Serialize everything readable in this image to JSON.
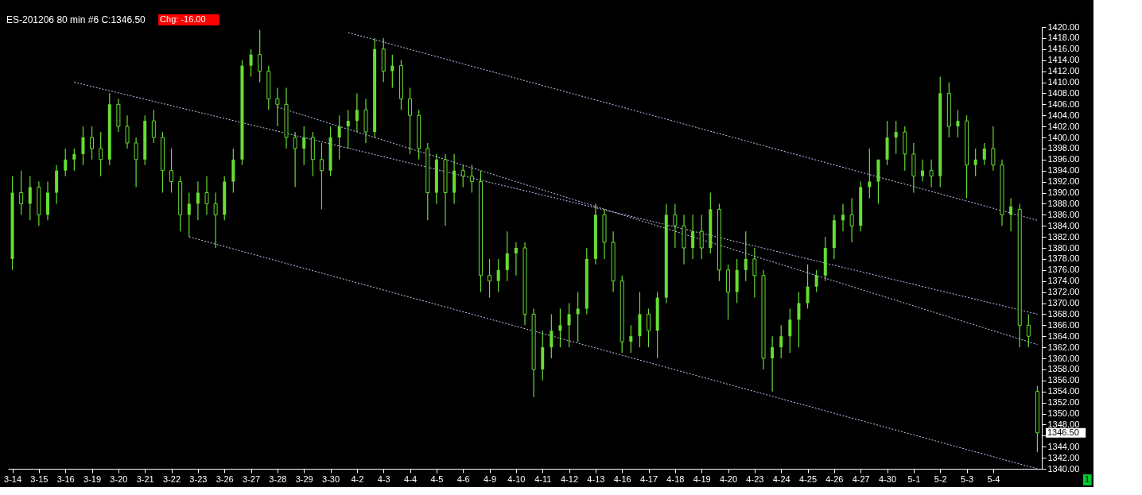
{
  "chart_data": {
    "type": "candlestick",
    "title": "ES-201206  80 min  #6 C:1346.50",
    "annotations": [
      "Chg: -16.00",
      "1",
      "1346.50"
    ],
    "color": "#66dd33",
    "categories": [
      "3-14",
      null,
      null,
      "3-15",
      null,
      null,
      "3-16",
      null,
      null,
      "3-19",
      null,
      null,
      "3-20",
      null,
      null,
      "3-21",
      null,
      null,
      "3-22",
      null,
      null,
      "3-23",
      null,
      null,
      "3-26",
      null,
      null,
      "3-27",
      null,
      null,
      "3-28",
      null,
      null,
      "3-29",
      null,
      null,
      "3-30",
      null,
      null,
      "4-2",
      null,
      null,
      "4-3",
      null,
      null,
      "4-4",
      null,
      null,
      "4-5",
      null,
      null,
      "4-6",
      null,
      null,
      "4-9",
      null,
      null,
      "4-10",
      null,
      null,
      "4-11",
      null,
      null,
      "4-12",
      null,
      null,
      "4-13",
      null,
      null,
      "4-16",
      null,
      null,
      "4-17",
      null,
      null,
      "4-18",
      null,
      null,
      "4-19",
      null,
      null,
      "4-20",
      null,
      null,
      "4-23",
      null,
      null,
      "4-24",
      null,
      null,
      "4-25",
      null,
      null,
      "4-26",
      null,
      null,
      "4-27",
      null,
      null,
      "4-30",
      null,
      null,
      "5-1",
      null,
      null,
      "5-2",
      null,
      null,
      "5-3",
      null,
      null,
      "5-4",
      null,
      null,
      null,
      null,
      null
    ],
    "ohlc": [
      [
        1378,
        1393,
        1376,
        1390
      ],
      [
        1390,
        1394,
        1386,
        1388
      ],
      [
        1388,
        1393,
        1385,
        1391
      ],
      [
        1391,
        1392,
        1384,
        1386
      ],
      [
        1386,
        1392,
        1385,
        1390
      ],
      [
        1390,
        1395,
        1388,
        1394
      ],
      [
        1394,
        1398,
        1393,
        1396
      ],
      [
        1396,
        1398,
        1394,
        1397
      ],
      [
        1397,
        1402,
        1395,
        1400
      ],
      [
        1400,
        1402,
        1396,
        1398
      ],
      [
        1398,
        1401,
        1393,
        1396
      ],
      [
        1396,
        1408,
        1395,
        1406
      ],
      [
        1406,
        1407,
        1401,
        1402
      ],
      [
        1402,
        1404,
        1398,
        1399
      ],
      [
        1399,
        1400,
        1391,
        1396
      ],
      [
        1396,
        1404,
        1395,
        1403
      ],
      [
        1403,
        1405,
        1399,
        1400
      ],
      [
        1400,
        1401,
        1390,
        1394
      ],
      [
        1394,
        1398,
        1390,
        1392
      ],
      [
        1392,
        1393,
        1383,
        1386
      ],
      [
        1386,
        1390,
        1382,
        1388
      ],
      [
        1388,
        1392,
        1385,
        1390
      ],
      [
        1390,
        1393,
        1386,
        1388
      ],
      [
        1388,
        1390,
        1380,
        1386
      ],
      [
        1386,
        1393,
        1385,
        1392
      ],
      [
        1392,
        1398,
        1390,
        1396
      ],
      [
        1396,
        1414,
        1395,
        1413
      ],
      [
        1413,
        1416,
        1411,
        1415
      ],
      [
        1415,
        1419.5,
        1410,
        1412
      ],
      [
        1412,
        1413,
        1405,
        1407
      ],
      [
        1407,
        1409,
        1402,
        1406
      ],
      [
        1406,
        1409,
        1398,
        1400
      ],
      [
        1400,
        1401,
        1391,
        1398
      ],
      [
        1398,
        1402,
        1395,
        1400
      ],
      [
        1400,
        1401,
        1393,
        1396
      ],
      [
        1396,
        1399,
        1387,
        1394
      ],
      [
        1394,
        1402,
        1393,
        1400
      ],
      [
        1400,
        1404,
        1396,
        1402
      ],
      [
        1402,
        1405,
        1398,
        1403
      ],
      [
        1403,
        1408,
        1401,
        1405
      ],
      [
        1405,
        1407,
        1399,
        1401
      ],
      [
        1401,
        1418,
        1400,
        1416
      ],
      [
        1416,
        1418,
        1410,
        1412
      ],
      [
        1412,
        1415,
        1409,
        1413
      ],
      [
        1413,
        1414,
        1405,
        1407
      ],
      [
        1407,
        1409,
        1397,
        1404
      ],
      [
        1404,
        1405,
        1396,
        1398
      ],
      [
        1398,
        1399,
        1385,
        1390
      ],
      [
        1390,
        1397,
        1388,
        1396
      ],
      [
        1396,
        1397,
        1384,
        1390
      ],
      [
        1390,
        1397,
        1388,
        1394
      ],
      [
        1394,
        1395,
        1391,
        1393
      ],
      [
        1393,
        1395,
        1390,
        1392
      ],
      [
        1392,
        1394,
        1372,
        1375
      ],
      [
        1375,
        1378,
        1371,
        1374
      ],
      [
        1374,
        1378,
        1372,
        1376
      ],
      [
        1376,
        1383,
        1374,
        1379
      ],
      [
        1379,
        1381,
        1375,
        1380
      ],
      [
        1380,
        1381,
        1366,
        1368
      ],
      [
        1368,
        1369,
        1353,
        1358
      ],
      [
        1358,
        1365,
        1356,
        1362
      ],
      [
        1362,
        1368,
        1360,
        1365
      ],
      [
        1365,
        1369,
        1362,
        1366
      ],
      [
        1366,
        1370,
        1362,
        1368
      ],
      [
        1368,
        1372,
        1363,
        1369
      ],
      [
        1369,
        1380,
        1368,
        1378
      ],
      [
        1378,
        1388,
        1377,
        1386
      ],
      [
        1386,
        1387,
        1378,
        1381
      ],
      [
        1381,
        1383,
        1372,
        1374
      ],
      [
        1374,
        1375,
        1361,
        1363
      ],
      [
        1363,
        1366,
        1361,
        1364
      ],
      [
        1364,
        1372,
        1362,
        1368
      ],
      [
        1368,
        1369,
        1362,
        1365
      ],
      [
        1365,
        1372,
        1360,
        1371
      ],
      [
        1371,
        1388,
        1370,
        1386
      ],
      [
        1386,
        1388,
        1380,
        1384
      ],
      [
        1384,
        1386,
        1377,
        1380
      ],
      [
        1380,
        1386,
        1378,
        1383
      ],
      [
        1383,
        1386,
        1378,
        1380
      ],
      [
        1380,
        1390,
        1379,
        1387
      ],
      [
        1387,
        1388,
        1374,
        1376
      ],
      [
        1376,
        1377,
        1367,
        1372
      ],
      [
        1372,
        1378,
        1370,
        1376
      ],
      [
        1376,
        1383,
        1374,
        1378
      ],
      [
        1378,
        1380,
        1371,
        1375
      ],
      [
        1375,
        1376,
        1358,
        1360
      ],
      [
        1360,
        1364,
        1354,
        1362
      ],
      [
        1362,
        1366,
        1360,
        1364
      ],
      [
        1364,
        1369,
        1361,
        1367
      ],
      [
        1367,
        1372,
        1362,
        1370
      ],
      [
        1370,
        1377,
        1369,
        1373
      ],
      [
        1373,
        1376,
        1372,
        1375
      ],
      [
        1375,
        1382,
        1374,
        1380
      ],
      [
        1380,
        1386,
        1378,
        1385
      ],
      [
        1385,
        1388,
        1383,
        1386
      ],
      [
        1386,
        1389,
        1381,
        1384
      ],
      [
        1384,
        1392,
        1383,
        1391
      ],
      [
        1391,
        1398,
        1389,
        1392
      ],
      [
        1392,
        1396,
        1388,
        1396
      ],
      [
        1396,
        1403,
        1395,
        1400
      ],
      [
        1400,
        1403,
        1397,
        1401
      ],
      [
        1401,
        1402,
        1394,
        1397
      ],
      [
        1397,
        1399,
        1390,
        1393
      ],
      [
        1393,
        1396,
        1392,
        1394
      ],
      [
        1394,
        1396,
        1391,
        1393
      ],
      [
        1393,
        1411,
        1391,
        1408
      ],
      [
        1408,
        1410,
        1400,
        1402
      ],
      [
        1402,
        1405,
        1400,
        1403
      ],
      [
        1403,
        1404,
        1389,
        1395
      ],
      [
        1395,
        1398,
        1393,
        1396
      ],
      [
        1396,
        1399,
        1395,
        1398
      ],
      [
        1398,
        1402,
        1394,
        1395
      ],
      [
        1395,
        1396,
        1384,
        1386
      ],
      [
        1386,
        1389,
        1383,
        1387.5
      ],
      [
        1387,
        1388,
        1362,
        1366
      ],
      [
        1366,
        1368,
        1362,
        1364
      ],
      [
        1354,
        1355,
        1343,
        1346.5
      ]
    ],
    "series": [
      {
        "type": "line",
        "color": "#c8c8ff",
        "line_style": "dotted",
        "values": [
          null,
          null,
          null,
          null,
          null,
          null,
          null,
          null,
          null,
          null,
          null,
          null,
          null,
          null,
          null,
          null,
          null,
          null,
          null,
          null,
          null,
          null,
          null,
          null,
          null,
          null,
          null,
          null,
          null,
          null,
          null,
          null,
          null,
          null,
          null,
          null,
          null,
          null,
          1419,
          null,
          null,
          null,
          null,
          null,
          null,
          null,
          null,
          null,
          null,
          null,
          null,
          null,
          null,
          null,
          null,
          null,
          null,
          null,
          null,
          null,
          null,
          null,
          null,
          null,
          null,
          null,
          null,
          null,
          null,
          null,
          null,
          null,
          null,
          null,
          null,
          null,
          null,
          null,
          null,
          null,
          null,
          null,
          null,
          null,
          null,
          null,
          null,
          null,
          null,
          null,
          null,
          null,
          null,
          null,
          null,
          null,
          null,
          null,
          null,
          null,
          null,
          null,
          null,
          null,
          null,
          null,
          null,
          null,
          null,
          null,
          null,
          null,
          null,
          null,
          null,
          null,
          1385
        ]
      },
      {
        "type": "line",
        "color": "#c8c8ff",
        "line_style": "dotted",
        "values": [
          null,
          null,
          null,
          null,
          null,
          null,
          null,
          1410,
          null,
          null,
          null,
          null,
          null,
          null,
          null,
          null,
          null,
          null,
          null,
          null,
          null,
          null,
          null,
          null,
          null,
          null,
          null,
          null,
          null,
          null,
          null,
          null,
          null,
          null,
          null,
          null,
          null,
          null,
          null,
          null,
          null,
          null,
          null,
          null,
          null,
          null,
          null,
          null,
          null,
          null,
          null,
          null,
          null,
          null,
          null,
          null,
          null,
          null,
          null,
          null,
          null,
          null,
          null,
          null,
          null,
          null,
          null,
          null,
          null,
          null,
          null,
          null,
          null,
          null,
          null,
          null,
          null,
          null,
          null,
          null,
          null,
          null,
          null,
          null,
          null,
          null,
          null,
          null,
          null,
          null,
          null,
          null,
          null,
          null,
          null,
          null,
          null,
          null,
          null,
          null,
          null,
          null,
          null,
          null,
          null,
          null,
          null,
          null,
          null,
          null,
          null,
          null,
          null,
          null,
          null,
          null,
          1368
        ]
      },
      {
        "type": "line",
        "color": "#c8c8ff",
        "line_style": "dotted",
        "values": [
          null,
          null,
          null,
          null,
          null,
          null,
          null,
          null,
          null,
          null,
          null,
          null,
          null,
          null,
          null,
          null,
          null,
          null,
          null,
          null,
          null,
          null,
          null,
          null,
          null,
          null,
          null,
          null,
          null,
          null,
          1405.5,
          null,
          null,
          null,
          null,
          null,
          null,
          null,
          null,
          null,
          null,
          null,
          null,
          null,
          null,
          null,
          null,
          null,
          null,
          null,
          null,
          null,
          null,
          null,
          null,
          null,
          null,
          null,
          null,
          null,
          null,
          null,
          null,
          null,
          null,
          null,
          null,
          null,
          null,
          null,
          null,
          null,
          null,
          null,
          null,
          null,
          null,
          null,
          null,
          null,
          null,
          null,
          null,
          null,
          null,
          null,
          null,
          null,
          null,
          null,
          null,
          null,
          null,
          null,
          null,
          null,
          null,
          null,
          null,
          null,
          null,
          null,
          null,
          null,
          null,
          null,
          null,
          null,
          null,
          null,
          null,
          null,
          null,
          null,
          null,
          null,
          1362.5
        ]
      },
      {
        "type": "line",
        "color": "#c8c8ff",
        "line_style": "dotted",
        "values": [
          null,
          null,
          null,
          null,
          null,
          null,
          null,
          null,
          null,
          null,
          null,
          null,
          null,
          null,
          null,
          null,
          null,
          null,
          null,
          null,
          1382,
          null,
          null,
          null,
          null,
          null,
          null,
          null,
          null,
          null,
          null,
          null,
          null,
          null,
          null,
          null,
          null,
          null,
          null,
          null,
          null,
          null,
          null,
          null,
          null,
          null,
          null,
          null,
          null,
          null,
          null,
          null,
          null,
          null,
          null,
          null,
          null,
          null,
          null,
          null,
          null,
          null,
          null,
          null,
          null,
          null,
          null,
          null,
          null,
          null,
          null,
          null,
          null,
          null,
          null,
          null,
          null,
          null,
          null,
          null,
          null,
          null,
          null,
          null,
          null,
          null,
          null,
          null,
          null,
          null,
          null,
          null,
          null,
          null,
          null,
          null,
          null,
          null,
          null,
          null,
          null,
          null,
          null,
          null,
          null,
          null,
          null,
          null,
          null,
          null,
          null,
          null,
          null,
          null,
          null,
          null,
          1340
        ]
      }
    ],
    "ylim": [
      1340,
      1420
    ],
    "yticks": [
      {
        "value": 1340,
        "label": "1340.00"
      },
      {
        "value": 1342,
        "label": "1342.00"
      },
      {
        "value": 1344,
        "label": "1344.00"
      },
      {
        "value": 1346,
        "label": null
      },
      {
        "value": 1348,
        "label": "1348.00"
      },
      {
        "value": 1350,
        "label": "1350.00"
      },
      {
        "value": 1352,
        "label": "1352.00"
      },
      {
        "value": 1354,
        "label": "1354.00"
      },
      {
        "value": 1356,
        "label": "1356.00"
      },
      {
        "value": 1358,
        "label": "1358.00"
      },
      {
        "value": 1360,
        "label": "1360.00"
      },
      {
        "value": 1362,
        "label": "1362.00"
      },
      {
        "value": 1364,
        "label": "1364.00"
      },
      {
        "value": 1366,
        "label": "1366.00"
      },
      {
        "value": 1368,
        "label": "1368.00"
      },
      {
        "value": 1370,
        "label": "1370.00"
      },
      {
        "value": 1372,
        "label": "1372.00"
      },
      {
        "value": 1374,
        "label": "1374.00"
      },
      {
        "value": 1376,
        "label": "1376.00"
      },
      {
        "value": 1378,
        "label": "1378.00"
      },
      {
        "value": 1380,
        "label": "1380.00"
      },
      {
        "value": 1382,
        "label": "1382.00"
      },
      {
        "value": 1384,
        "label": "1384.00"
      },
      {
        "value": 1386,
        "label": "1386.00"
      },
      {
        "value": 1388,
        "label": "1388.00"
      },
      {
        "value": 1390,
        "label": "1390.00"
      },
      {
        "value": 1392,
        "label": "1392.00"
      },
      {
        "value": 1394,
        "label": "1394.00"
      },
      {
        "value": 1396,
        "label": "1396.00"
      },
      {
        "value": 1398,
        "label": "1398.00"
      },
      {
        "value": 1400,
        "label": "1400.00"
      },
      {
        "value": 1402,
        "label": "1402.00"
      },
      {
        "value": 1404,
        "label": "1404.00"
      },
      {
        "value": 1406,
        "label": "1406.00"
      },
      {
        "value": 1408,
        "label": "1408.00"
      },
      {
        "value": 1410,
        "label": "1410.00"
      },
      {
        "value": 1412,
        "label": "1412.00"
      },
      {
        "value": 1414,
        "label": "1414.00"
      },
      {
        "value": 1416,
        "label": "1416.00"
      },
      {
        "value": 1418,
        "label": "1418.00"
      },
      {
        "value": 1420,
        "label": "1420.00"
      }
    ]
  }
}
